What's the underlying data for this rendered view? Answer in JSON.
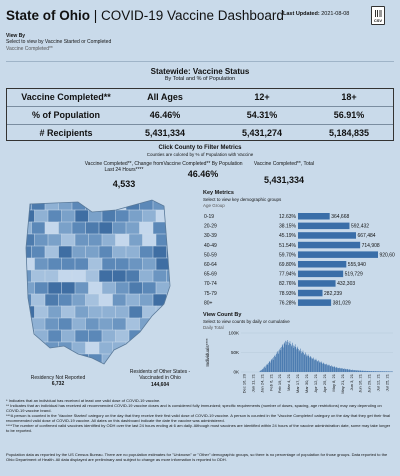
{
  "header": {
    "title_main": "State of Ohio",
    "title_sep": " | ",
    "title_sub": "COVID-19 Vaccine Dashboard",
    "last_updated_label": "Last Updated:",
    "last_updated": "2021-08-08",
    "download_label": "CSV",
    "download_icon": "csv-download-icon"
  },
  "view_by": {
    "title": "View By",
    "description": "Select to view by Vaccine Started or Completed",
    "selected": "Vaccine Completed**"
  },
  "statewide": {
    "title": "Statewide: Vaccine Status",
    "subtitle": "By Total and % of Population",
    "columns": [
      "Vaccine Completed**",
      "All Ages",
      "12+",
      "18+"
    ],
    "rows": [
      {
        "label": "% of Population",
        "values": [
          "46.46%",
          "54.31%",
          "56.91%"
        ]
      },
      {
        "label": "# Recipients",
        "values": [
          "5,431,334",
          "5,431,274",
          "5,184,835"
        ]
      }
    ]
  },
  "county_filter": {
    "title": "Click County to Filter Metrics",
    "subtitle": "Counties are colored by % of Population with Vaccine"
  },
  "kpis": [
    {
      "label": "Vaccine Completed**, Change from Last 24 Hours****",
      "value": "4,533"
    },
    {
      "label": "Vaccine Completed** By Population",
      "value": "46.46%"
    },
    {
      "label": "Vaccine Completed**, Total",
      "value": "5,431,334"
    }
  ],
  "key_metrics": {
    "title": "Key Metrics",
    "description": "Select to view key demographic groups",
    "selected": "Age Group"
  },
  "age_chart": {
    "type": "bar",
    "orientation": "horizontal",
    "bar_color": "#3a6ea8",
    "categories": [
      "0-19",
      "20-29",
      "30-39",
      "40-49",
      "50-59",
      "60-64",
      "65-69",
      "70-74",
      "75-79",
      "80+"
    ],
    "percents": [
      "12.63%",
      "38.15%",
      "45.19%",
      "51.54%",
      "59.70%",
      "69.80%",
      "77.94%",
      "82.76%",
      "78.93%",
      "76.28%"
    ],
    "values": [
      364668,
      592432,
      667484,
      714908,
      920602,
      555940,
      519729,
      432303,
      282239,
      381029
    ],
    "value_labels": [
      "364,668",
      "592,432",
      "667,484",
      "714,908",
      "920,602",
      "555,940",
      "519,729",
      "432,303",
      "282,239",
      "381,029"
    ]
  },
  "view_count_by": {
    "title": "View Count By",
    "description": "Select to view counts by daily or cumulative",
    "selected": "Daily Total"
  },
  "daily_chart": {
    "type": "bar",
    "bar_color": "#3a6ea8",
    "ylabel": "Individuals****",
    "ylim": [
      0,
      100000
    ],
    "yticks": [
      "100K",
      "50K",
      "0K"
    ],
    "ytick_values": [
      100000,
      50000,
      0
    ],
    "xticks": [
      "Dec 16, 20",
      "Jan 11, 21",
      "Jan 24, 21",
      "Feb 6, 21",
      "Feb 19, 21",
      "Mar 4, 21",
      "Mar 17, 21",
      "Mar 30, 21",
      "Apr 12, 21",
      "Apr 25, 21",
      "May 8, 21",
      "May 21, 21",
      "Jun 3, 21",
      "Jun 16, 21",
      "Jun 29, 21",
      "Jul 12, 21",
      "Jul 25, 21"
    ],
    "values": [
      0,
      0,
      0,
      0,
      0,
      0,
      0,
      0,
      0,
      0,
      0,
      0,
      0,
      0,
      0,
      0,
      0,
      0,
      0,
      0,
      0,
      0,
      0,
      0,
      0,
      0,
      0,
      0,
      1000,
      2000,
      4000,
      5000,
      6000,
      8000,
      9000,
      12000,
      14000,
      11000,
      16000,
      19000,
      21000,
      18000,
      23000,
      26000,
      28000,
      24000,
      30000,
      33000,
      35000,
      31000,
      38000,
      41000,
      44000,
      39000,
      46000,
      50000,
      53000,
      47000,
      55000,
      58000,
      62000,
      56000,
      64000,
      68000,
      71000,
      63000,
      73000,
      76000,
      80000,
      70000,
      78000,
      82000,
      77000,
      69000,
      74000,
      79000,
      72000,
      66000,
      70000,
      75000,
      68000,
      62000,
      66000,
      71000,
      64000,
      58000,
      61000,
      65000,
      59000,
      53000,
      56000,
      60000,
      54000,
      48000,
      51000,
      55000,
      49000,
      44000,
      46000,
      50000,
      45000,
      40000,
      42000,
      45000,
      41000,
      37000,
      38000,
      41000,
      37000,
      33000,
      35000,
      37000,
      33000,
      30000,
      31000,
      34000,
      30000,
      27000,
      28000,
      30000,
      27000,
      24000,
      25000,
      27000,
      24000,
      21000,
      22000,
      24000,
      21000,
      19000,
      20000,
      21000,
      19000,
      17000,
      17000,
      19000,
      17000,
      15000,
      15000,
      17000,
      15000,
      13000,
      13000,
      15000,
      13000,
      11000,
      11000,
      13000,
      11000,
      10000,
      10000,
      11000,
      10000,
      9000,
      9000,
      10000,
      9000,
      8000,
      8000,
      9000,
      8000,
      7000,
      7000,
      8000,
      7000,
      6000,
      6000,
      7000,
      6000,
      5000,
      5000,
      6000,
      5000,
      4500,
      4500,
      5000,
      4500,
      4000,
      4000,
      4500,
      4000,
      3500,
      3500,
      4000,
      3500,
      3000,
      3000,
      3500,
      3000,
      2800,
      2800,
      3000,
      2800,
      2500,
      2500,
      2800,
      2500,
      2300,
      2300,
      2500,
      2300,
      2100,
      2100,
      2300,
      2100,
      2000,
      2000,
      2100,
      2000,
      1900,
      1900,
      2000,
      1900,
      1800,
      1800,
      1900,
      1800,
      1700,
      1700,
      1800,
      1700,
      1600,
      1600,
      1700,
      1600,
      1500,
      1500,
      1600,
      1500,
      1400,
      1400,
      1500,
      1400,
      1300
    ]
  },
  "residency": {
    "not_reported_label": "Residency Not Reported",
    "not_reported_value": "6,732",
    "other_states_label": "Residents of Other States - Vaccinated in Ohio",
    "other_states_value": "144,604"
  },
  "map": {
    "colors": [
      "#8fb1d4",
      "#7aa1c9",
      "#6b95c1",
      "#5b88b8",
      "#4d7bad",
      "#3f6ea3",
      "#a5c1de",
      "#c4d7ec"
    ]
  },
  "footnotes": {
    "block1": [
      "* Indicates that an individual has received at least one valid dose of COVID-19 vaccine.",
      "** Indicates that an individual has received all recommended COVID-19 vaccine doses and is considered fully immunized; specific requirements (number of doses, spacing, age restrictions) may vary depending on COVID-19 vaccine brand.",
      "***A person is counted in the 'Vaccine Started' category on the day that they receive their first valid dose of COVID-19 vaccine. A person is counted in the 'Vaccine Completed' category on the day that they get their final recommended valid dose of COVID-19 vaccine. All dates on this dashboard indicate the date the vaccine was administered.",
      "****The number of confirmed valid vaccines identified by ODH over the last 24 hours ending at 6 am daily. Although most vaccines are identified within 24 hours of the vaccine administration date, some may take longer to be reported."
    ],
    "block2": [
      "Population data as reported by the US Census Bureau. There are no population estimates for \"Unknown\" or \"Other\" demographic groups, so there is no percentage of population for those groups. Data reported to the Ohio Department of Health. All data displayed are preliminary and subject to change as more information is reported to ODH."
    ]
  }
}
